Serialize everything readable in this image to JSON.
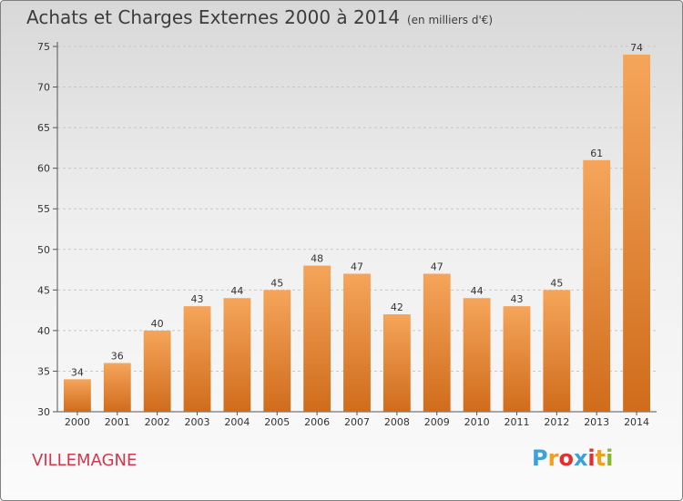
{
  "title": "Achats et Charges Externes 2000 à 2014",
  "subtitle": "(en milliers d'€)",
  "place": "VILLEMAGNE",
  "logo": "Proxiti",
  "colors": {
    "bar_light": "#f5a55a",
    "bar_dark": "#d06c1c",
    "place_text": "#d1384c",
    "logo_letters": [
      "#3ea0d8",
      "#f0a020",
      "#e03030",
      "#3ea0d8",
      "#e03030",
      "#f0a020",
      "#88b830"
    ]
  },
  "chart_data": {
    "type": "bar",
    "categories": [
      "2000",
      "2001",
      "2002",
      "2003",
      "2004",
      "2005",
      "2006",
      "2007",
      "2008",
      "2009",
      "2010",
      "2011",
      "2012",
      "2013",
      "2014"
    ],
    "values": [
      34,
      36,
      40,
      43,
      44,
      45,
      48,
      47,
      42,
      47,
      44,
      43,
      45,
      61,
      74
    ],
    "ylim": [
      30,
      75
    ],
    "yticks": [
      30,
      35,
      40,
      45,
      50,
      55,
      60,
      65,
      70,
      75
    ],
    "grid": true
  }
}
